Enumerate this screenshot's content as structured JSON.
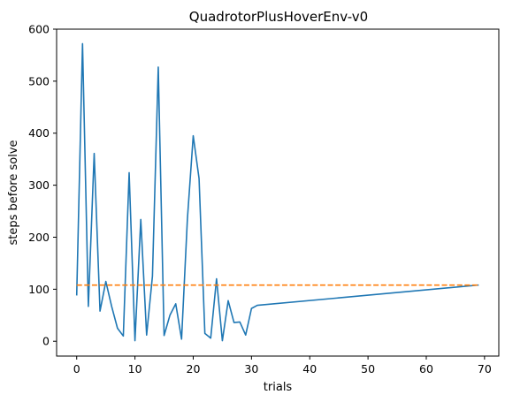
{
  "chart_data": {
    "type": "line",
    "title": "QuadrotorPlusHoverEnv-v0",
    "xlabel": "trials",
    "ylabel": "steps before solve",
    "xlim": [
      -3.45,
      72.45
    ],
    "ylim": [
      -28.5,
      600
    ],
    "xticks": [
      0,
      10,
      20,
      30,
      40,
      50,
      60,
      70
    ],
    "yticks": [
      0,
      100,
      200,
      300,
      400,
      500,
      600
    ],
    "grid": false,
    "legend": "none",
    "series": [
      {
        "style": "solid",
        "color": "#1f77b4",
        "x": [
          0,
          1,
          2,
          3,
          4,
          5,
          6,
          7,
          8,
          9,
          10,
          11,
          12,
          13,
          14,
          15,
          16,
          17,
          18,
          19,
          20,
          21,
          22,
          23,
          24,
          25,
          26,
          27,
          28,
          29,
          30,
          31,
          69
        ],
        "y": [
          88,
          572,
          67,
          361,
          58,
          115,
          67,
          25,
          10,
          324,
          1,
          234,
          12,
          125,
          527,
          11,
          50,
          72,
          4,
          235,
          395,
          313,
          15,
          6,
          120,
          1,
          78,
          36,
          37,
          12,
          63,
          69,
          108
        ]
      },
      {
        "style": "dashed",
        "color": "#ff7f0e",
        "x": [
          0,
          69
        ],
        "y": [
          108,
          108
        ]
      }
    ]
  }
}
